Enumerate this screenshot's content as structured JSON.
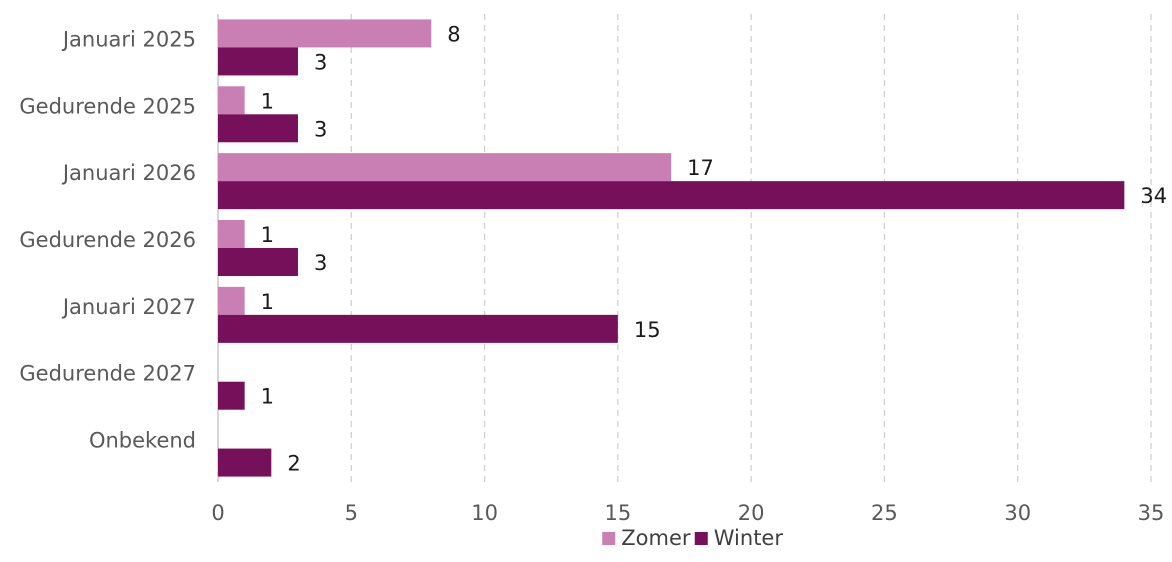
{
  "chart_data": {
    "type": "bar",
    "orientation": "horizontal",
    "categories": [
      "Januari 2025",
      "Gedurende 2025",
      "Januari 2026",
      "Gedurende 2026",
      "Januari 2027",
      "Gedurende 2027",
      "Onbekend"
    ],
    "series": [
      {
        "name": "Zomer",
        "color": "#c97fb4",
        "values": [
          8,
          1,
          17,
          1,
          1,
          null,
          null
        ]
      },
      {
        "name": "Winter",
        "color": "#76105a",
        "values": [
          3,
          3,
          34,
          3,
          15,
          1,
          2
        ]
      }
    ],
    "xlim": [
      0,
      35
    ],
    "x_ticks": [
      0,
      5,
      10,
      15,
      20,
      25,
      30,
      35
    ],
    "grid": true,
    "legend_position": "bottom",
    "data_labels": true,
    "title": "",
    "xlabel": "",
    "ylabel": ""
  }
}
